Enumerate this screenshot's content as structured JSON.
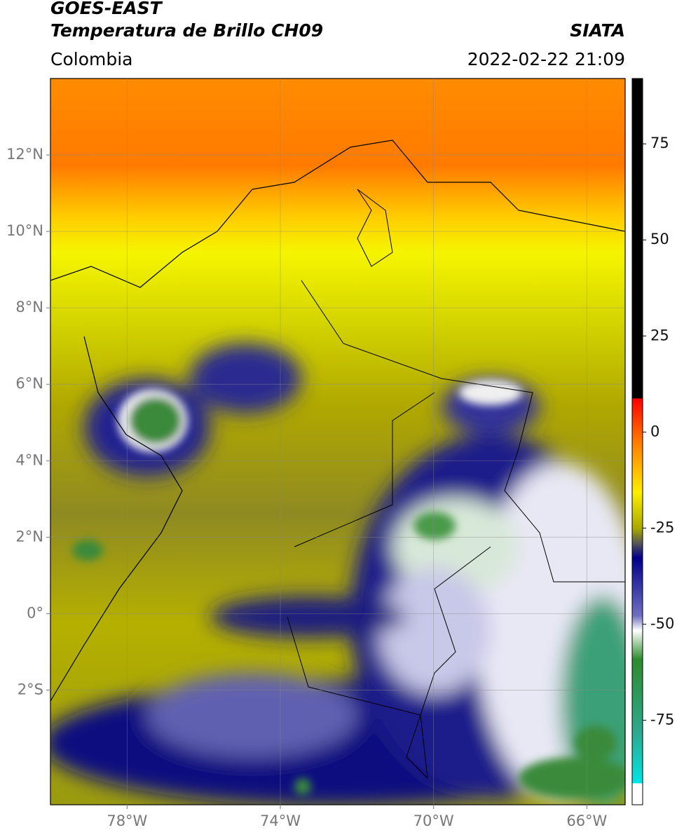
{
  "header": {
    "title": "GOES-EAST",
    "subtitle": "Temperatura de Brillo CH09",
    "source": "SIATA",
    "region": "Colombia",
    "datetime": "2022-02-22 21:09"
  },
  "map": {
    "xlim": [
      -80,
      -65
    ],
    "ylim": [
      -5,
      14
    ],
    "xticks": [
      {
        "value": -78,
        "label": "78°W"
      },
      {
        "value": -74,
        "label": "74°W"
      },
      {
        "value": -70,
        "label": "70°W"
      },
      {
        "value": -66,
        "label": "66°W"
      }
    ],
    "yticks": [
      {
        "value": 12,
        "label": "12°N"
      },
      {
        "value": 10,
        "label": "10°N"
      },
      {
        "value": 8,
        "label": "8°N"
      },
      {
        "value": 6,
        "label": "6°N"
      },
      {
        "value": 4,
        "label": "4°N"
      },
      {
        "value": 2,
        "label": "2°N"
      },
      {
        "value": 0,
        "label": "0°"
      },
      {
        "value": -2,
        "label": "2°S"
      }
    ],
    "grid": true
  },
  "colorbar": {
    "lim": [
      -97,
      92
    ],
    "ticks": [
      75,
      50,
      25,
      0,
      -25,
      -50,
      -75
    ]
  }
}
